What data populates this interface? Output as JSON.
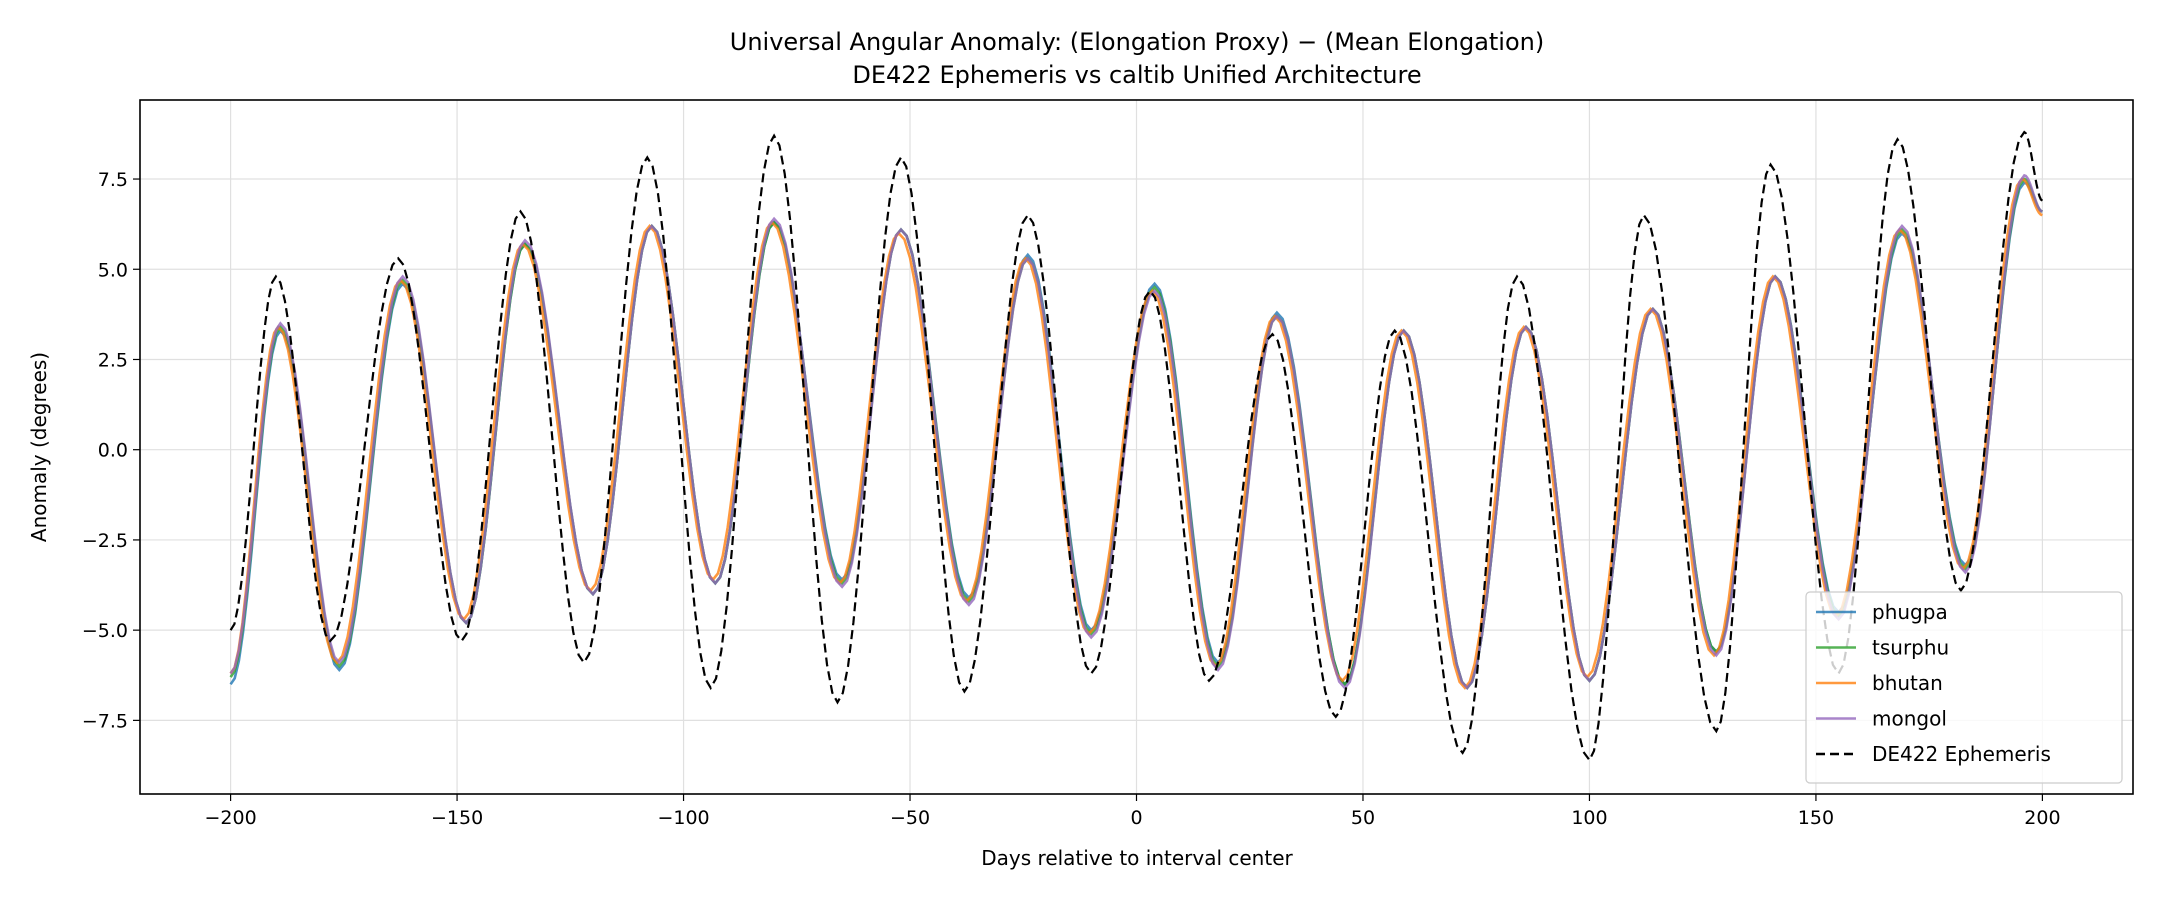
{
  "chart_data": {
    "type": "line",
    "title": "Universal Angular Anomaly: (Elongation Proxy) − (Mean Elongation)",
    "subtitle": "DE422 Ephemeris vs caltib Unified Architecture",
    "xlabel": "Days relative to interval center",
    "ylabel": "Anomaly (degrees)",
    "xlim": [
      -220,
      220
    ],
    "ylim": [
      -9.54,
      9.69
    ],
    "xticks": [
      -200,
      -150,
      -100,
      -50,
      0,
      50,
      100,
      150,
      200
    ],
    "xtick_labels": [
      "−200",
      "−150",
      "−100",
      "−50",
      "0",
      "50",
      "100",
      "150",
      "200"
    ],
    "yticks": [
      -7.5,
      -5.0,
      -2.5,
      0.0,
      2.5,
      5.0,
      7.5
    ],
    "ytick_labels": [
      "−7.5",
      "−5.0",
      "−2.5",
      "0.0",
      "2.5",
      "5.0",
      "7.5"
    ],
    "grid": true,
    "legend_position": "lower-right",
    "note": "series given as successive extrema (day, degrees); curve interpolated smoothly between them",
    "series": [
      {
        "name": "phugpa",
        "color": "#1f77b4",
        "dashed": false,
        "x": [
          -200,
          -189,
          -176,
          -162,
          -148,
          -135,
          -120,
          -107,
          -93,
          -80,
          -65,
          -52,
          -37,
          -24,
          -10,
          4,
          18,
          31,
          46,
          59,
          73,
          86,
          100,
          114,
          128,
          141,
          155,
          169,
          183,
          196,
          200
        ],
        "y": [
          -6.5,
          3.3,
          -6.1,
          4.6,
          -4.8,
          5.7,
          -4.0,
          6.2,
          -3.7,
          6.3,
          -3.6,
          6.1,
          -4.1,
          5.4,
          -5.0,
          4.6,
          -5.9,
          3.8,
          -6.5,
          3.3,
          -6.6,
          3.4,
          -6.4,
          3.9,
          -5.6,
          4.8,
          -4.5,
          6.0,
          -3.2,
          7.4,
          6.6
        ]
      },
      {
        "name": "tsurphu",
        "color": "#2ca02c",
        "dashed": false,
        "x": [
          -200,
          -189,
          -176,
          -162,
          -148,
          -135,
          -120,
          -107,
          -93,
          -80,
          -65,
          -52,
          -37,
          -24,
          -10,
          4,
          18,
          31,
          46,
          59,
          73,
          86,
          100,
          114,
          128,
          141,
          155,
          169,
          183,
          196,
          200
        ],
        "y": [
          -6.3,
          3.4,
          -6.0,
          4.7,
          -4.8,
          5.7,
          -4.0,
          6.2,
          -3.7,
          6.3,
          -3.7,
          6.1,
          -4.2,
          5.3,
          -5.1,
          4.5,
          -6.0,
          3.7,
          -6.5,
          3.3,
          -6.6,
          3.4,
          -6.4,
          3.9,
          -5.6,
          4.8,
          -4.6,
          6.1,
          -3.3,
          7.5,
          6.6
        ]
      },
      {
        "name": "bhutan",
        "color": "#ff7f0e",
        "dashed": false,
        "x": [
          -200,
          -189.5,
          -176.5,
          -162.5,
          -148.5,
          -135.5,
          -120.5,
          -107.5,
          -93.5,
          -80.5,
          -65.5,
          -52.5,
          -37.5,
          -24.5,
          -10.5,
          3.5,
          17.5,
          30.5,
          45.5,
          58.5,
          72.5,
          85.5,
          99.5,
          113.5,
          127.5,
          140.5,
          154.5,
          168.5,
          182.5,
          195.5,
          200
        ],
        "y": [
          -6.2,
          3.4,
          -5.9,
          4.7,
          -4.7,
          5.7,
          -3.9,
          6.2,
          -3.6,
          6.3,
          -3.7,
          6.0,
          -4.2,
          5.3,
          -5.1,
          4.4,
          -6.0,
          3.7,
          -6.4,
          3.3,
          -6.6,
          3.4,
          -6.3,
          3.9,
          -5.7,
          4.8,
          -4.6,
          6.1,
          -3.3,
          7.5,
          6.5
        ]
      },
      {
        "name": "mongol",
        "color": "#9467bd",
        "dashed": false,
        "x": [
          -200,
          -189,
          -176,
          -162,
          -148,
          -135,
          -120,
          -107,
          -93,
          -80,
          -65,
          -52,
          -37,
          -24,
          -10,
          4,
          18,
          31,
          46,
          59,
          73,
          86,
          100,
          114,
          128,
          141,
          155,
          169,
          183,
          196,
          200
        ],
        "y": [
          -6.2,
          3.5,
          -5.9,
          4.8,
          -4.8,
          5.8,
          -4.0,
          6.2,
          -3.7,
          6.4,
          -3.8,
          6.1,
          -4.3,
          5.3,
          -5.2,
          4.4,
          -6.1,
          3.7,
          -6.6,
          3.3,
          -6.6,
          3.4,
          -6.4,
          3.9,
          -5.7,
          4.8,
          -4.7,
          6.2,
          -3.4,
          7.6,
          6.6
        ]
      },
      {
        "name": "DE422 Ephemeris",
        "color": "#000000",
        "dashed": true,
        "x": [
          -200,
          -190,
          -178,
          -163,
          -149,
          -136,
          -122,
          -108,
          -94,
          -80,
          -66,
          -52,
          -38,
          -24,
          -10,
          3,
          16,
          30,
          44,
          57,
          72,
          84,
          100,
          112,
          128,
          140,
          155,
          168,
          182,
          196,
          200
        ],
        "y": [
          -5.0,
          4.8,
          -5.3,
          5.3,
          -5.3,
          6.6,
          -5.9,
          8.1,
          -6.6,
          8.7,
          -7.0,
          8.1,
          -6.7,
          6.5,
          -6.2,
          4.4,
          -6.4,
          3.2,
          -7.4,
          3.3,
          -8.4,
          4.8,
          -8.6,
          6.5,
          -7.8,
          7.9,
          -6.2,
          8.6,
          -3.9,
          8.8,
          6.9
        ]
      }
    ]
  }
}
